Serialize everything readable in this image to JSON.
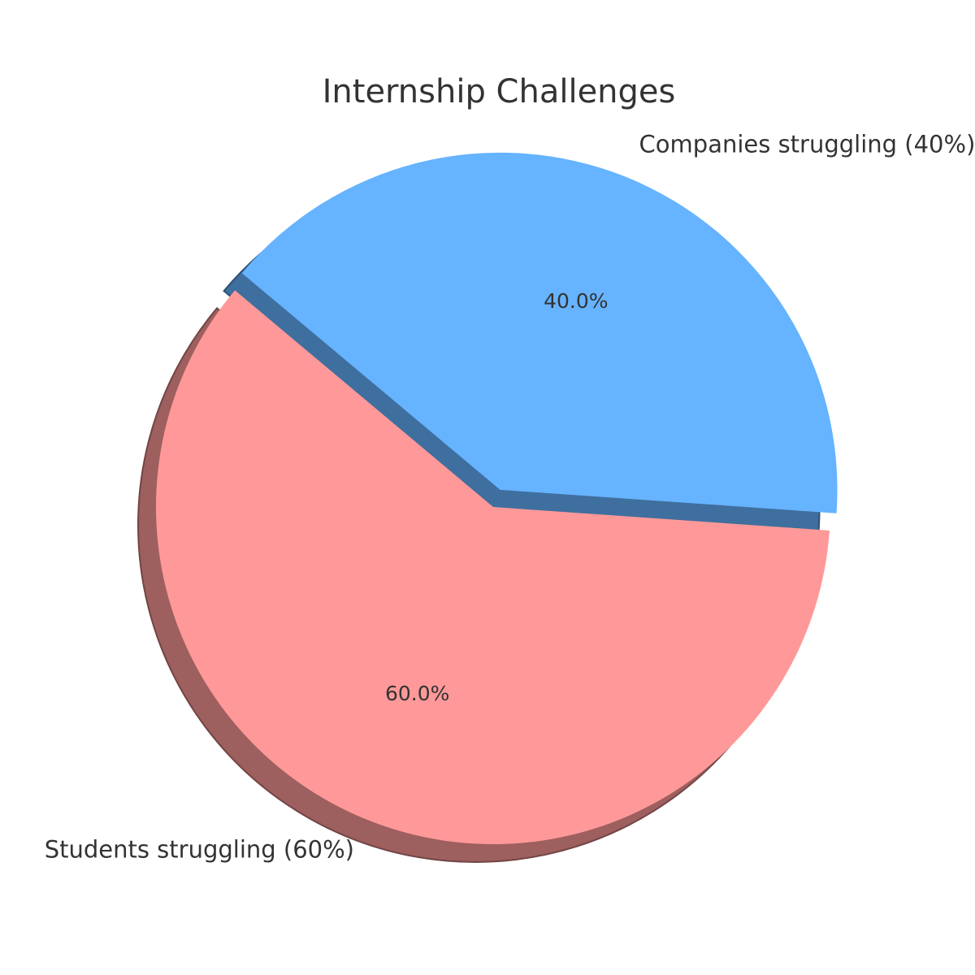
{
  "chart_data": {
    "type": "pie",
    "title": "Internship Challenges",
    "slices": [
      {
        "label": "Students struggling (60%)",
        "value": 60,
        "percent_label": "60.0%",
        "color": "#ff9999",
        "exploded": false
      },
      {
        "label": "Companies struggling (40%)",
        "value": 40,
        "percent_label": "40.0%",
        "color": "#66b3ff",
        "exploded": true
      }
    ],
    "shadow": true,
    "start_angle_deg": 140,
    "legend": "none"
  }
}
